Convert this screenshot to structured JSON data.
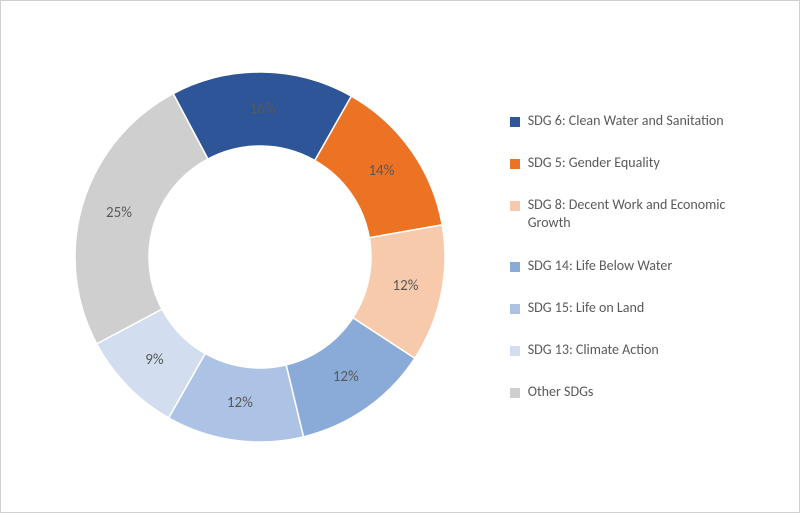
{
  "chart": {
    "type": "donut",
    "background_color": "#ffffff",
    "border_color": "#d0d0d0",
    "label_fontsize": 15,
    "label_color": "#595959",
    "legend_fontsize": 14,
    "legend_color": "#595959",
    "inner_radius_ratio": 0.6,
    "slices": [
      {
        "label": "SDG 6: Clean Water and Sanitation",
        "value": 16,
        "display": "16%",
        "color": "#2e5597"
      },
      {
        "label": "SDG 5: Gender Equality",
        "value": 14,
        "display": "14%",
        "color": "#ec7224"
      },
      {
        "label": "SDG 8: Decent Work and Economic Growth",
        "value": 12,
        "display": "12%",
        "color": "#f7caac"
      },
      {
        "label": "SDG 14: Life Below Water",
        "value": 12,
        "display": "12%",
        "color": "#8aabd8"
      },
      {
        "label": "SDG 15: Life on Land",
        "value": 12,
        "display": "12%",
        "color": "#adc3e5"
      },
      {
        "label": "SDG 13: Climate Action",
        "value": 9,
        "display": "9%",
        "color": "#d2deef"
      },
      {
        "label": "Other SDGs",
        "value": 25,
        "display": "25%",
        "color": "#cfcfcf"
      }
    ],
    "start_angle_deg": -28
  }
}
